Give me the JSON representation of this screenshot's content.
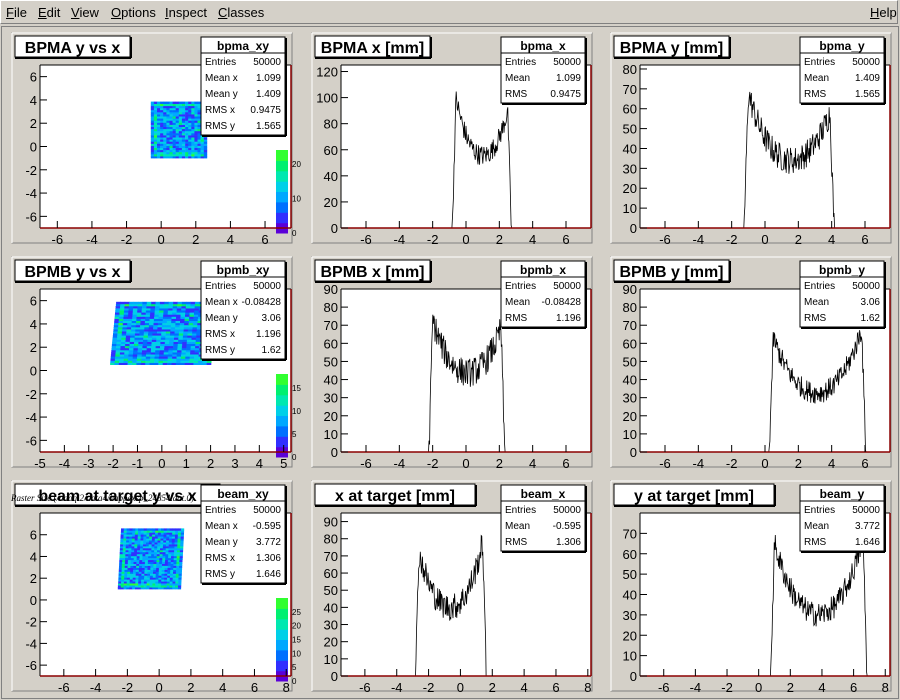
{
  "menu": {
    "file": {
      "lead": "F",
      "rest": "ile"
    },
    "edit": {
      "lead": "E",
      "rest": "dit"
    },
    "view": {
      "lead": "V",
      "rest": "iew"
    },
    "options": {
      "lead": "O",
      "rest": "ptions"
    },
    "inspect": {
      "lead": "I",
      "rest": "nspect"
    },
    "classes": {
      "lead": "C",
      "rest": "lasses"
    },
    "help": {
      "lead": "H",
      "rest": "elp"
    }
  },
  "caption": "Raster Size (/adaql2/data4/happexsp_24854.dat.0)",
  "colors": {
    "frame_line": "#8b0000",
    "pad_bg": "#d4d0c8",
    "plot_bg": "#ffffff",
    "trace": "#000000"
  },
  "chart_data": [
    {
      "id": "bpma_xy",
      "type": "heatmap",
      "title": "BPMA y vs x",
      "xlim": [
        -7,
        7.5
      ],
      "ylim": [
        -7,
        7
      ],
      "xticks": [
        -6,
        -4,
        -2,
        0,
        2,
        4,
        6
      ],
      "yticks": [
        -6,
        -4,
        -2,
        0,
        2,
        4,
        6
      ],
      "region": {
        "x": [
          -0.6,
          2.5
        ],
        "y": [
          -1.0,
          3.8
        ]
      },
      "skew": 0.0,
      "colorbar": {
        "ticks": [
          0,
          10,
          20
        ]
      },
      "stats": {
        "name": "bpma_xy",
        "rows": [
          [
            "Entries",
            "50000"
          ],
          [
            "Mean x",
            "1.099"
          ],
          [
            "Mean y",
            "1.409"
          ],
          [
            "RMS x",
            "0.9475"
          ],
          [
            "RMS y",
            "1.565"
          ]
        ]
      }
    },
    {
      "id": "bpma_x",
      "type": "line",
      "title": "BPMA x [mm]",
      "xlim": [
        -7.5,
        7.5
      ],
      "ylim": [
        0,
        125
      ],
      "xticks": [
        -6,
        -4,
        -2,
        0,
        2,
        4,
        6
      ],
      "yticks": [
        0,
        20,
        40,
        60,
        80,
        100,
        120
      ],
      "profile": {
        "lo": -0.6,
        "hi": 2.5,
        "edge": 0.22,
        "peak_lo": 100,
        "peak_hi": 90,
        "trough": 50,
        "noise": 8
      },
      "stats": {
        "name": "bpma_x",
        "rows": [
          [
            "Entries",
            "50000"
          ],
          [
            "Mean",
            "1.099"
          ],
          [
            "RMS",
            "0.9475"
          ]
        ]
      }
    },
    {
      "id": "bpma_y",
      "type": "line",
      "title": "BPMA y [mm]",
      "xlim": [
        -7.5,
        7.5
      ],
      "ylim": [
        0,
        82
      ],
      "xticks": [
        -6,
        -4,
        -2,
        0,
        2,
        4,
        6
      ],
      "yticks": [
        0,
        10,
        20,
        30,
        40,
        50,
        60,
        70,
        80
      ],
      "profile": {
        "lo": -1.0,
        "hi": 3.9,
        "edge": 0.25,
        "peak_lo": 68,
        "peak_hi": 58,
        "trough": 30,
        "noise": 7
      },
      "stats": {
        "name": "bpma_y",
        "rows": [
          [
            "Entries",
            "50000"
          ],
          [
            "Mean",
            "1.409"
          ],
          [
            "RMS",
            "1.565"
          ]
        ]
      }
    },
    {
      "id": "bpmb_xy",
      "type": "heatmap",
      "title": "BPMB y vs x",
      "xlim": [
        -5,
        5.3
      ],
      "ylim": [
        -7,
        7
      ],
      "xticks": [
        -5,
        -4,
        -3,
        -2,
        -1,
        0,
        1,
        2,
        3,
        4,
        5
      ],
      "yticks": [
        -6,
        -4,
        -2,
        0,
        2,
        4,
        6
      ],
      "region": {
        "x": [
          -2.0,
          2.1
        ],
        "y": [
          0.5,
          5.8
        ]
      },
      "skew": 0.25,
      "colorbar": {
        "ticks": [
          0,
          5,
          10,
          15
        ]
      },
      "stats": {
        "name": "bpmb_xy",
        "rows": [
          [
            "Entries",
            "50000"
          ],
          [
            "Mean x",
            "-0.08428"
          ],
          [
            "Mean y",
            "3.06"
          ],
          [
            "RMS x",
            "1.196"
          ],
          [
            "RMS y",
            "1.62"
          ]
        ]
      }
    },
    {
      "id": "bpmb_x",
      "type": "line",
      "title": "BPMB x [mm]",
      "xlim": [
        -7.5,
        7.5
      ],
      "ylim": [
        0,
        90
      ],
      "xticks": [
        -6,
        -4,
        -2,
        0,
        2,
        4,
        6
      ],
      "yticks": [
        0,
        10,
        20,
        30,
        40,
        50,
        60,
        70,
        80,
        90
      ],
      "profile": {
        "lo": -2.0,
        "hi": 2.1,
        "edge": 0.22,
        "peak_lo": 73,
        "peak_hi": 68,
        "trough": 40,
        "noise": 8
      },
      "stats": {
        "name": "bpmb_x",
        "rows": [
          [
            "Entries",
            "50000"
          ],
          [
            "Mean",
            "-0.08428"
          ],
          [
            "RMS",
            "1.196"
          ]
        ]
      }
    },
    {
      "id": "bpmb_y",
      "type": "line",
      "title": "BPMB y [mm]",
      "xlim": [
        -7.5,
        7.5
      ],
      "ylim": [
        0,
        90
      ],
      "xticks": [
        -6,
        -4,
        -2,
        0,
        2,
        4,
        6
      ],
      "yticks": [
        0,
        10,
        20,
        30,
        40,
        50,
        60,
        70,
        80,
        90
      ],
      "profile": {
        "lo": 0.5,
        "hi": 5.8,
        "edge": 0.25,
        "peak_lo": 63,
        "peak_hi": 68,
        "trough": 28,
        "noise": 6
      },
      "stats": {
        "name": "bpmb_y",
        "rows": [
          [
            "Entries",
            "50000"
          ],
          [
            "Mean",
            "3.06"
          ],
          [
            "RMS",
            "1.62"
          ]
        ]
      }
    },
    {
      "id": "beam_xy",
      "type": "heatmap",
      "title": "beam at target y vs x",
      "xlim": [
        -7.5,
        8.3
      ],
      "ylim": [
        -7,
        8
      ],
      "xticks": [
        -6,
        -4,
        -2,
        0,
        2,
        4,
        6,
        8
      ],
      "yticks": [
        -6,
        -4,
        -2,
        0,
        2,
        4,
        6
      ],
      "region": {
        "x": [
          -2.5,
          1.3
        ],
        "y": [
          1.0,
          6.5
        ]
      },
      "skew": 0.2,
      "colorbar": {
        "ticks": [
          0,
          5,
          10,
          15,
          20,
          25
        ]
      },
      "stats": {
        "name": "beam_xy",
        "rows": [
          [
            "Entries",
            "50000"
          ],
          [
            "Mean x",
            "-0.595"
          ],
          [
            "Mean y",
            "3.772"
          ],
          [
            "RMS x",
            "1.306"
          ],
          [
            "RMS y",
            "1.646"
          ]
        ]
      }
    },
    {
      "id": "beam_x",
      "type": "line",
      "title": "x at target [mm]",
      "xlim": [
        -7.5,
        8.2
      ],
      "ylim": [
        0,
        95
      ],
      "xticks": [
        -6,
        -4,
        -2,
        0,
        2,
        4,
        6,
        8
      ],
      "yticks": [
        0,
        10,
        20,
        30,
        40,
        50,
        60,
        70,
        80,
        90
      ],
      "profile": {
        "lo": -2.6,
        "hi": 1.4,
        "edge": 0.22,
        "peak_lo": 72,
        "peak_hi": 78,
        "trough": 35,
        "noise": 8
      },
      "stats": {
        "name": "beam_x",
        "rows": [
          [
            "Entries",
            "50000"
          ],
          [
            "Mean",
            "-0.595"
          ],
          [
            "RMS",
            "1.306"
          ]
        ]
      }
    },
    {
      "id": "beam_y",
      "type": "line",
      "title": "y at target [mm]",
      "xlim": [
        -7.5,
        8.3
      ],
      "ylim": [
        0,
        80
      ],
      "xticks": [
        -6,
        -4,
        -2,
        0,
        2,
        4,
        6,
        8
      ],
      "yticks": [
        0,
        10,
        20,
        30,
        40,
        50,
        60,
        70
      ],
      "profile": {
        "lo": 1.0,
        "hi": 6.6,
        "edge": 0.25,
        "peak_lo": 65,
        "peak_hi": 68,
        "trough": 25,
        "noise": 6
      },
      "stats": {
        "name": "beam_y",
        "rows": [
          [
            "Entries",
            "50000"
          ],
          [
            "Mean",
            "3.772"
          ],
          [
            "RMS",
            "1.646"
          ]
        ]
      }
    }
  ]
}
